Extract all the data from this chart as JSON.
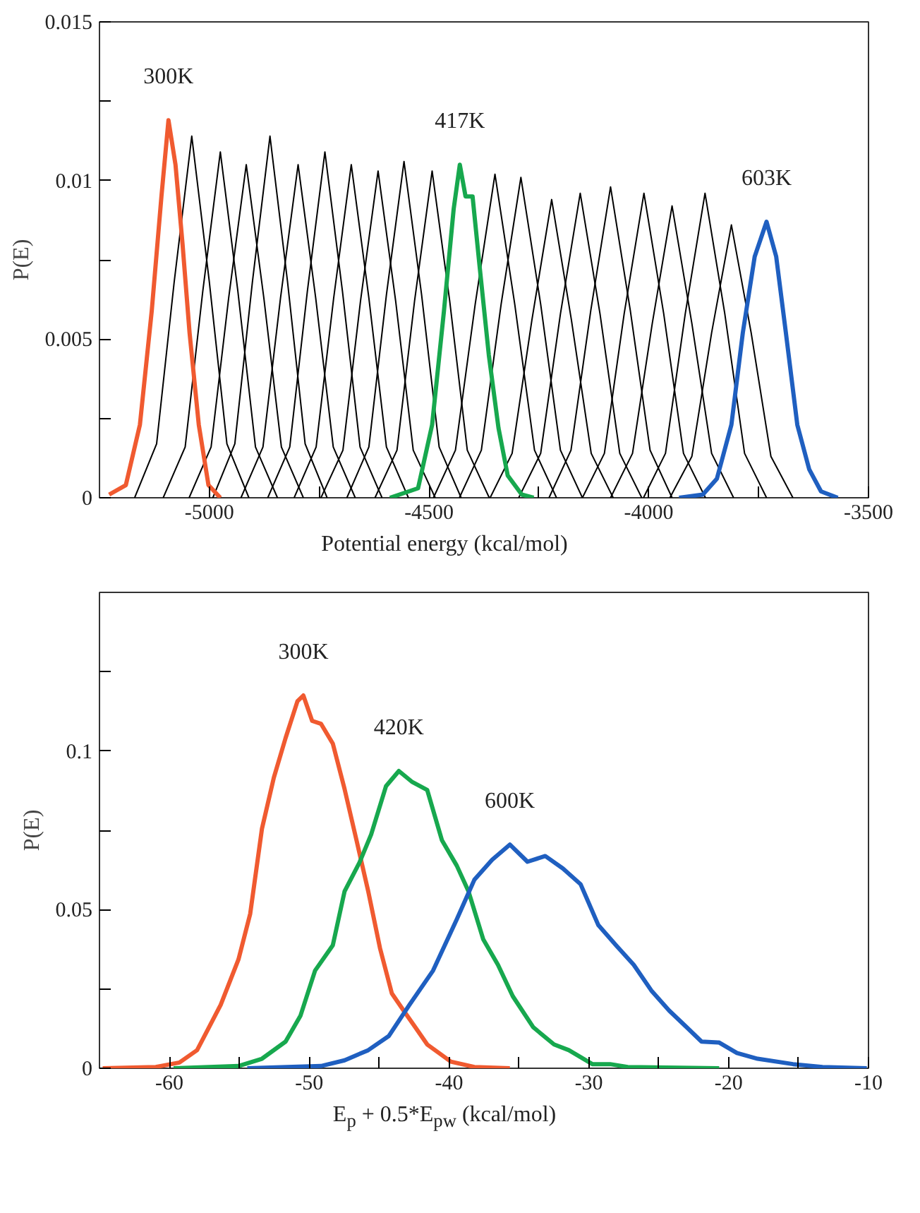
{
  "chart_data": [
    {
      "type": "line",
      "xlabel": "Potential energy (kcal/mol)",
      "ylabel": "P(E)",
      "xlim": [
        -5250,
        -3500
      ],
      "xticks": [
        -5000,
        {
          "value": -4750,
          "label": null
        },
        -4500,
        {
          "value": -4250,
          "label": null
        },
        -4000,
        {
          "value": -3750,
          "label": null
        },
        -3500
      ],
      "ylim": [
        0,
        0.015
      ],
      "yticks": [
        0,
        {
          "value": 0.0025,
          "label": null
        },
        0.005,
        {
          "value": 0.0075,
          "label": null
        },
        0.01,
        {
          "value": 0.0125,
          "label": null
        },
        0.015
      ],
      "series": [
        {
          "color": "#000000",
          "x": [
            -5170,
            -5120,
            -5080,
            -5040,
            -5000,
            -4960,
            -4910
          ],
          "values": [
            0,
            0.0017,
            0.0068,
            0.0114,
            0.0068,
            0.0017,
            0
          ]
        },
        {
          "color": "#000000",
          "x": [
            -5105,
            -5055,
            -5015,
            -4975,
            -4935,
            -4895,
            -4845
          ],
          "values": [
            0,
            0.0016,
            0.0065,
            0.0109,
            0.0065,
            0.0016,
            0
          ]
        },
        {
          "color": "#000000",
          "x": [
            -5046,
            -4996,
            -4956,
            -4916,
            -4876,
            -4836,
            -4786
          ],
          "values": [
            0,
            0.0016,
            0.0063,
            0.0105,
            0.0063,
            0.0016,
            0
          ]
        },
        {
          "color": "#000000",
          "x": [
            -4992,
            -4942,
            -4902,
            -4862,
            -4822,
            -4782,
            -4732
          ],
          "values": [
            0,
            0.0017,
            0.0068,
            0.0114,
            0.0068,
            0.0017,
            0
          ]
        },
        {
          "color": "#000000",
          "x": [
            -4928,
            -4878,
            -4838,
            -4798,
            -4758,
            -4718,
            -4668
          ],
          "values": [
            0,
            0.0016,
            0.0063,
            0.0105,
            0.0063,
            0.0016,
            0
          ]
        },
        {
          "color": "#000000",
          "x": [
            -4867,
            -4817,
            -4777,
            -4737,
            -4697,
            -4657,
            -4607
          ],
          "values": [
            0,
            0.0016,
            0.0065,
            0.0109,
            0.0065,
            0.0016,
            0
          ]
        },
        {
          "color": "#000000",
          "x": [
            -4807,
            -4757,
            -4717,
            -4677,
            -4637,
            -4597,
            -4547
          ],
          "values": [
            0,
            0.0016,
            0.0063,
            0.0105,
            0.0063,
            0.0016,
            0
          ]
        },
        {
          "color": "#000000",
          "x": [
            -4746,
            -4696,
            -4656,
            -4616,
            -4576,
            -4536,
            -4486
          ],
          "values": [
            0,
            0.0015,
            0.0062,
            0.0103,
            0.0062,
            0.0015,
            0
          ]
        },
        {
          "color": "#000000",
          "x": [
            -4687,
            -4637,
            -4597,
            -4557,
            -4517,
            -4477,
            -4427
          ],
          "values": [
            0,
            0.0016,
            0.0064,
            0.0106,
            0.0064,
            0.0016,
            0
          ]
        },
        {
          "color": "#000000",
          "x": [
            -4623,
            -4573,
            -4533,
            -4493,
            -4453,
            -4413,
            -4363
          ],
          "values": [
            0,
            0.0015,
            0.0062,
            0.0103,
            0.0062,
            0.0015,
            0
          ]
        },
        {
          "color": "#000000",
          "x": [
            -4490,
            -4440,
            -4395,
            -4350,
            -4305,
            -4260,
            -4210
          ],
          "values": [
            0,
            0.0015,
            0.0061,
            0.0102,
            0.0061,
            0.0015,
            0
          ]
        },
        {
          "color": "#000000",
          "x": [
            -4431,
            -4381,
            -4336,
            -4291,
            -4246,
            -4201,
            -4151
          ],
          "values": [
            0,
            0.0015,
            0.0061,
            0.0101,
            0.0061,
            0.0015,
            0
          ]
        },
        {
          "color": "#000000",
          "x": [
            -4361,
            -4311,
            -4266,
            -4221,
            -4176,
            -4131,
            -4081
          ],
          "values": [
            0,
            0.0014,
            0.0056,
            0.0094,
            0.0056,
            0.0014,
            0
          ]
        },
        {
          "color": "#000000",
          "x": [
            -4296,
            -4246,
            -4201,
            -4156,
            -4111,
            -4066,
            -4016
          ],
          "values": [
            0,
            0.0014,
            0.0058,
            0.0096,
            0.0058,
            0.0014,
            0
          ]
        },
        {
          "color": "#000000",
          "x": [
            -4227,
            -4177,
            -4132,
            -4087,
            -4042,
            -3997,
            -3947
          ],
          "values": [
            0,
            0.0015,
            0.0059,
            0.0098,
            0.0059,
            0.0015,
            0
          ]
        },
        {
          "color": "#000000",
          "x": [
            -4151,
            -4101,
            -4056,
            -4011,
            -3966,
            -3921,
            -3871
          ],
          "values": [
            0,
            0.0014,
            0.0058,
            0.0096,
            0.0058,
            0.0014,
            0
          ]
        },
        {
          "color": "#000000",
          "x": [
            -4087,
            -4037,
            -3992,
            -3947,
            -3902,
            -3857,
            -3807
          ],
          "values": [
            0,
            0.0014,
            0.0055,
            0.0092,
            0.0055,
            0.0014,
            0
          ]
        },
        {
          "color": "#000000",
          "x": [
            -4012,
            -3962,
            -3917,
            -3872,
            -3827,
            -3782,
            -3732
          ],
          "values": [
            0,
            0.0014,
            0.0058,
            0.0096,
            0.0058,
            0.0014,
            0
          ]
        },
        {
          "color": "#000000",
          "x": [
            -3952,
            -3902,
            -3857,
            -3812,
            -3767,
            -3722,
            -3672
          ],
          "values": [
            0,
            0.0013,
            0.0052,
            0.0086,
            0.0052,
            0.0013,
            0
          ]
        },
        {
          "name": "300K",
          "color": "#f05a30",
          "x": [
            -5228,
            -5190,
            -5158,
            -5131,
            -5109,
            -5093,
            -5077,
            -5061,
            -5045,
            -5024,
            -5002,
            -4975
          ],
          "values": [
            0.0001,
            0.0004,
            0.0023,
            0.0059,
            0.0095,
            0.0119,
            0.0105,
            0.008,
            0.0052,
            0.0023,
            0.0004,
            0
          ]
        },
        {
          "name": "417K",
          "color": "#17a84e",
          "x": [
            -4589,
            -4525,
            -4493,
            -4466,
            -4444,
            -4430,
            -4417,
            -4401,
            -4385,
            -4364,
            -4342,
            -4321,
            -4289,
            -4262
          ],
          "values": [
            0,
            0.0003,
            0.0023,
            0.0059,
            0.0091,
            0.0105,
            0.0095,
            0.0095,
            0.0073,
            0.0045,
            0.0022,
            0.0007,
            0.0001,
            0
          ]
        },
        {
          "name": "603K",
          "color": "#1f5fc0",
          "x": [
            -3931,
            -3877,
            -3845,
            -3812,
            -3786,
            -3759,
            -3732,
            -3710,
            -3688,
            -3662,
            -3635,
            -3608,
            -3570
          ],
          "values": [
            0,
            0.0001,
            0.0006,
            0.0023,
            0.0052,
            0.0076,
            0.0087,
            0.0076,
            0.0052,
            0.0023,
            0.0009,
            0.0002,
            0
          ]
        }
      ]
    },
    {
      "type": "line",
      "xlabel": "E$_{p}$ + 0.5*E$_{pw}$ (kcal/mol)",
      "ylabel": "P(E)",
      "xlim": [
        -65,
        -10
      ],
      "xticks": [
        -60,
        {
          "value": -55,
          "label": null
        },
        -50,
        {
          "value": -45,
          "label": null
        },
        -40,
        {
          "value": -35,
          "label": null
        },
        -30,
        {
          "value": -25,
          "label": null
        },
        -20,
        {
          "value": -15,
          "label": null
        },
        -10
      ],
      "ylim": [
        0,
        0.15
      ],
      "yticks": [
        0,
        {
          "value": 0.025,
          "label": null
        },
        0.05,
        {
          "value": 0.075,
          "label": null
        },
        0.1,
        {
          "value": 0.125,
          "label": null
        }
      ],
      "series": [
        {
          "name": "300K",
          "color": "#f05a30",
          "x": [
            -64.77,
            -60.97,
            -59.28,
            -58.02,
            -57.17,
            -56.33,
            -55.06,
            -54.22,
            -53.38,
            -52.53,
            -51.69,
            -50.84,
            -50.42,
            -49.79,
            -49.16,
            -48.31,
            -47.47,
            -46.62,
            -45.78,
            -44.94,
            -44.09,
            -43.25,
            -42.41,
            -41.56,
            -40.72,
            -39.87,
            -38.19,
            -35.65
          ],
          "values": [
            0,
            0.0004,
            0.0018,
            0.0057,
            0.0129,
            0.02,
            0.0343,
            0.0487,
            0.0755,
            0.0916,
            0.1041,
            0.1157,
            0.1175,
            0.1095,
            0.1086,
            0.1023,
            0.088,
            0.0719,
            0.0558,
            0.0379,
            0.0236,
            0.0182,
            0.0129,
            0.0075,
            0.0048,
            0.0021,
            0.0004,
            0
          ]
        },
        {
          "name": "420K",
          "color": "#17a84e",
          "x": [
            -59.7,
            -55.06,
            -53.38,
            -51.69,
            -50.63,
            -49.58,
            -48.31,
            -47.47,
            -46.41,
            -45.57,
            -44.51,
            -43.59,
            -42.62,
            -41.56,
            -40.51,
            -39.45,
            -38.61,
            -37.55,
            -36.5,
            -35.44,
            -33.97,
            -32.49,
            -31.43,
            -29.75,
            -28.48,
            -27.22,
            -20.68
          ],
          "values": [
            0,
            0.0007,
            0.003,
            0.0084,
            0.0165,
            0.0308,
            0.0388,
            0.0558,
            0.0648,
            0.0737,
            0.0889,
            0.0937,
            0.0902,
            0.0877,
            0.0719,
            0.0639,
            0.0558,
            0.0406,
            0.0326,
            0.0227,
            0.0129,
            0.0075,
            0.0057,
            0.0013,
            0.0013,
            0.0004,
            0
          ]
        },
        {
          "name": "600K",
          "color": "#1f5fc0",
          "x": [
            -54.43,
            -49.16,
            -47.47,
            -45.78,
            -44.3,
            -42.83,
            -41.14,
            -39.45,
            -38.19,
            -36.92,
            -35.65,
            -34.39,
            -33.12,
            -31.86,
            -30.59,
            -29.32,
            -28.06,
            -26.79,
            -25.53,
            -24.26,
            -23.0,
            -21.94,
            -20.68,
            -19.41,
            -17.93,
            -15.4,
            -13.29,
            -10.12
          ],
          "values": [
            0,
            0.0007,
            0.0025,
            0.0057,
            0.0102,
            0.02,
            0.0308,
            0.0469,
            0.0594,
            0.0657,
            0.0705,
            0.0651,
            0.0669,
            0.063,
            0.058,
            0.0451,
            0.0388,
            0.0326,
            0.0245,
            0.0182,
            0.0129,
            0.0084,
            0.0081,
            0.0048,
            0.003,
            0.0013,
            0.0004,
            0
          ]
        }
      ]
    }
  ]
}
